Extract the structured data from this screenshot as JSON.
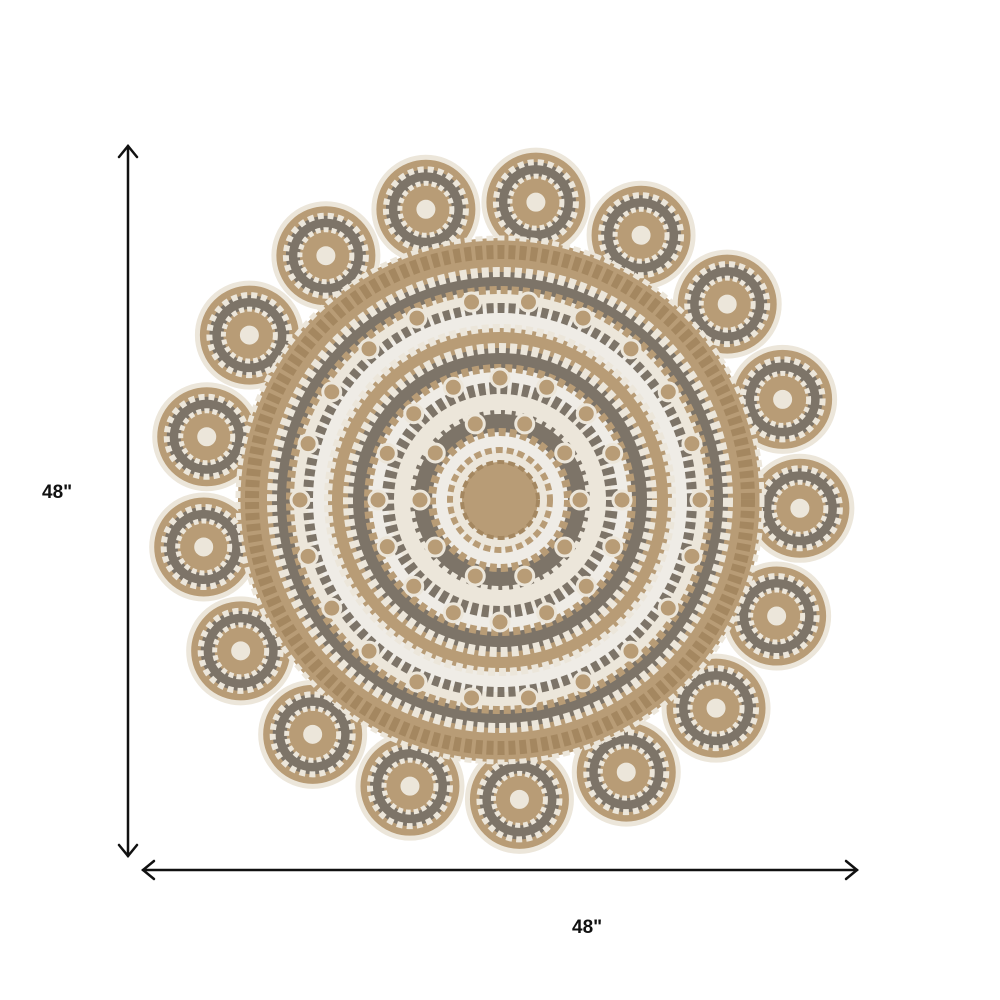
{
  "dimensions": {
    "height_label": "48\"",
    "width_label": "48\""
  },
  "colors": {
    "jute": "#b89c76",
    "grey": "#7d7468",
    "cream": "#ece6da",
    "arrow": "#111111"
  }
}
